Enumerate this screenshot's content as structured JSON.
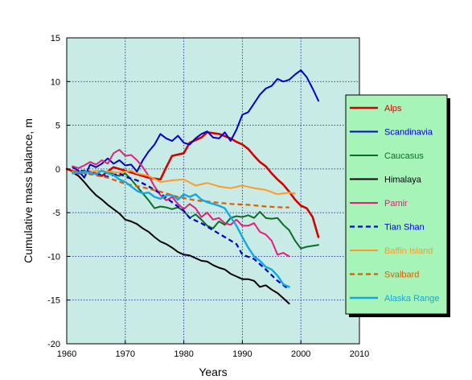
{
  "chart_data": {
    "type": "line",
    "title": "",
    "xlabel": "Years",
    "ylabel": "Cumulative mass balance, m",
    "xlim": [
      1960,
      2010
    ],
    "ylim": [
      -20,
      15
    ],
    "x_ticks": [
      1960,
      1970,
      1980,
      1990,
      2000,
      2010
    ],
    "y_ticks": [
      -20,
      -15,
      -10,
      -5,
      0,
      5,
      10,
      15
    ],
    "grid": true,
    "legend_position": "right",
    "plot_background": "#c8ebe6",
    "legend_background": "#a6f4b8",
    "series": [
      {
        "name": "Alps",
        "color": "#d40000",
        "dash": "solid",
        "width": 2.6,
        "points": [
          [
            1960,
            0
          ],
          [
            1962,
            -0.5
          ],
          [
            1964,
            -0.3
          ],
          [
            1966,
            -0.8
          ],
          [
            1968,
            0.2
          ],
          [
            1970,
            -0.2
          ],
          [
            1972,
            -0.6
          ],
          [
            1974,
            -1.0
          ],
          [
            1976,
            -1.2
          ],
          [
            1977,
            0.2
          ],
          [
            1978,
            1.5
          ],
          [
            1980,
            1.8
          ],
          [
            1981,
            3.0
          ],
          [
            1983,
            3.6
          ],
          [
            1984,
            4.2
          ],
          [
            1986,
            4.0
          ],
          [
            1988,
            3.5
          ],
          [
            1989,
            3.1
          ],
          [
            1990,
            2.8
          ],
          [
            1991,
            2.3
          ],
          [
            1992,
            1.5
          ],
          [
            1993,
            0.8
          ],
          [
            1994,
            0.3
          ],
          [
            1995,
            -0.5
          ],
          [
            1996,
            -1.2
          ],
          [
            1997,
            -1.8
          ],
          [
            1998,
            -2.6
          ],
          [
            1999,
            -3.5
          ],
          [
            2000,
            -4.2
          ],
          [
            2001,
            -4.5
          ],
          [
            2002,
            -5.5
          ],
          [
            2003,
            -7.8
          ]
        ]
      },
      {
        "name": "Scandinavia",
        "color": "#0000cc",
        "dash": "solid",
        "width": 2,
        "points": [
          [
            1961,
            0.2
          ],
          [
            1962,
            -0.2
          ],
          [
            1963,
            -1.0
          ],
          [
            1964,
            0.5
          ],
          [
            1965,
            0.2
          ],
          [
            1966,
            0.6
          ],
          [
            1967,
            1.2
          ],
          [
            1968,
            0.6
          ],
          [
            1969,
            1.0
          ],
          [
            1970,
            0.4
          ],
          [
            1971,
            0.5
          ],
          [
            1972,
            -0.3
          ],
          [
            1973,
            1.0
          ],
          [
            1974,
            2.0
          ],
          [
            1975,
            2.8
          ],
          [
            1976,
            4.0
          ],
          [
            1977,
            3.5
          ],
          [
            1978,
            3.2
          ],
          [
            1979,
            3.8
          ],
          [
            1980,
            3.0
          ],
          [
            1981,
            2.8
          ],
          [
            1982,
            3.5
          ],
          [
            1983,
            4.0
          ],
          [
            1984,
            4.3
          ],
          [
            1985,
            3.6
          ],
          [
            1986,
            3.5
          ],
          [
            1987,
            4.2
          ],
          [
            1988,
            3.2
          ],
          [
            1989,
            4.5
          ],
          [
            1990,
            6.2
          ],
          [
            1991,
            6.5
          ],
          [
            1992,
            7.5
          ],
          [
            1993,
            8.5
          ],
          [
            1994,
            9.2
          ],
          [
            1995,
            9.5
          ],
          [
            1996,
            10.3
          ],
          [
            1997,
            10.0
          ],
          [
            1998,
            10.2
          ],
          [
            1999,
            10.8
          ],
          [
            2000,
            11.3
          ],
          [
            2001,
            10.5
          ],
          [
            2002,
            9.2
          ],
          [
            2003,
            7.8
          ]
        ]
      },
      {
        "name": "Caucasus",
        "color": "#0a6e28",
        "dash": "solid",
        "width": 2,
        "points": [
          [
            1967,
            -0.3
          ],
          [
            1968,
            -0.6
          ],
          [
            1969,
            -0.8
          ],
          [
            1970,
            -0.5
          ],
          [
            1971,
            -1.2
          ],
          [
            1972,
            -2.0
          ],
          [
            1973,
            -2.8
          ],
          [
            1974,
            -3.6
          ],
          [
            1975,
            -4.5
          ],
          [
            1976,
            -4.3
          ],
          [
            1977,
            -4.4
          ],
          [
            1978,
            -4.6
          ],
          [
            1979,
            -4.4
          ],
          [
            1980,
            -4.8
          ],
          [
            1981,
            -5.6
          ],
          [
            1982,
            -5.2
          ],
          [
            1983,
            -5.8
          ],
          [
            1984,
            -6.5
          ],
          [
            1985,
            -6.8
          ],
          [
            1986,
            -6.0
          ],
          [
            1987,
            -6.4
          ],
          [
            1988,
            -5.6
          ],
          [
            1989,
            -5.4
          ],
          [
            1990,
            -5.5
          ],
          [
            1991,
            -5.3
          ],
          [
            1992,
            -5.6
          ],
          [
            1993,
            -4.9
          ],
          [
            1994,
            -5.6
          ],
          [
            1995,
            -5.7
          ],
          [
            1996,
            -5.6
          ],
          [
            1997,
            -6.4
          ],
          [
            1998,
            -7.0
          ],
          [
            1999,
            -8.2
          ],
          [
            2000,
            -9.1
          ],
          [
            2001,
            -8.9
          ],
          [
            2002,
            -8.8
          ],
          [
            2003,
            -8.7
          ]
        ]
      },
      {
        "name": "Himalaya",
        "color": "#000000",
        "dash": "solid",
        "width": 2,
        "points": [
          [
            1961,
            -0.4
          ],
          [
            1962,
            -0.8
          ],
          [
            1963,
            -1.5
          ],
          [
            1964,
            -2.3
          ],
          [
            1965,
            -3.0
          ],
          [
            1966,
            -3.5
          ],
          [
            1967,
            -4.1
          ],
          [
            1968,
            -4.6
          ],
          [
            1969,
            -5.1
          ],
          [
            1970,
            -5.8
          ],
          [
            1971,
            -6.0
          ],
          [
            1972,
            -6.3
          ],
          [
            1973,
            -6.8
          ],
          [
            1974,
            -7.2
          ],
          [
            1975,
            -7.8
          ],
          [
            1976,
            -8.3
          ],
          [
            1977,
            -8.6
          ],
          [
            1978,
            -9.0
          ],
          [
            1979,
            -9.5
          ],
          [
            1980,
            -9.8
          ],
          [
            1981,
            -9.9
          ],
          [
            1982,
            -10.2
          ],
          [
            1983,
            -10.5
          ],
          [
            1984,
            -10.6
          ],
          [
            1985,
            -11.0
          ],
          [
            1986,
            -11.3
          ],
          [
            1987,
            -11.5
          ],
          [
            1988,
            -12.0
          ],
          [
            1989,
            -12.3
          ],
          [
            1990,
            -12.6
          ],
          [
            1991,
            -12.6
          ],
          [
            1992,
            -12.8
          ],
          [
            1993,
            -13.5
          ],
          [
            1994,
            -13.3
          ],
          [
            1995,
            -13.8
          ],
          [
            1996,
            -14.2
          ],
          [
            1997,
            -14.8
          ],
          [
            1998,
            -15.4
          ]
        ]
      },
      {
        "name": "Pamir",
        "color": "#e0207a",
        "dash": "solid",
        "width": 2,
        "points": [
          [
            1961,
            0.3
          ],
          [
            1962,
            0.1
          ],
          [
            1963,
            0.4
          ],
          [
            1964,
            0.8
          ],
          [
            1965,
            0.5
          ],
          [
            1966,
            1.0
          ],
          [
            1967,
            0.6
          ],
          [
            1968,
            1.8
          ],
          [
            1969,
            2.2
          ],
          [
            1970,
            1.5
          ],
          [
            1971,
            1.6
          ],
          [
            1972,
            1.0
          ],
          [
            1973,
            0.2
          ],
          [
            1974,
            -0.8
          ],
          [
            1975,
            -2.0
          ],
          [
            1976,
            -3.0
          ],
          [
            1977,
            -3.6
          ],
          [
            1978,
            -3.2
          ],
          [
            1979,
            -4.0
          ],
          [
            1980,
            -4.6
          ],
          [
            1981,
            -4.0
          ],
          [
            1982,
            -4.5
          ],
          [
            1983,
            -5.5
          ],
          [
            1984,
            -5.0
          ],
          [
            1985,
            -5.8
          ],
          [
            1986,
            -5.6
          ],
          [
            1987,
            -6.2
          ],
          [
            1988,
            -6.4
          ],
          [
            1989,
            -5.8
          ],
          [
            1990,
            -6.5
          ],
          [
            1991,
            -6.5
          ],
          [
            1992,
            -6.2
          ],
          [
            1993,
            -7.2
          ],
          [
            1994,
            -7.5
          ],
          [
            1995,
            -8.2
          ],
          [
            1996,
            -9.8
          ],
          [
            1997,
            -9.6
          ],
          [
            1998,
            -10.0
          ]
        ]
      },
      {
        "name": "Tian Shan",
        "color": "#0000cc",
        "dash": "dashed",
        "width": 2.2,
        "points": [
          [
            1961,
            -0.3
          ],
          [
            1963,
            -0.2
          ],
          [
            1965,
            -0.5
          ],
          [
            1967,
            -0.9
          ],
          [
            1969,
            -0.5
          ],
          [
            1970,
            -0.9
          ],
          [
            1972,
            -1.3
          ],
          [
            1974,
            -2.0
          ],
          [
            1976,
            -2.8
          ],
          [
            1978,
            -3.8
          ],
          [
            1980,
            -4.8
          ],
          [
            1981,
            -5.6
          ],
          [
            1983,
            -6.2
          ],
          [
            1985,
            -7.0
          ],
          [
            1987,
            -7.8
          ],
          [
            1989,
            -8.6
          ],
          [
            1990,
            -9.8
          ],
          [
            1992,
            -10.3
          ],
          [
            1994,
            -11.5
          ],
          [
            1996,
            -12.8
          ],
          [
            1998,
            -13.8
          ]
        ]
      },
      {
        "name": "Baffin Island",
        "color": "#ff9a28",
        "dash": "solid",
        "width": 2,
        "points": [
          [
            1961,
            -0.3
          ],
          [
            1963,
            -0.5
          ],
          [
            1965,
            -0.2
          ],
          [
            1967,
            -0.3
          ],
          [
            1969,
            -0.4
          ],
          [
            1971,
            -0.2
          ],
          [
            1972,
            -0.5
          ],
          [
            1974,
            -0.8
          ],
          [
            1976,
            -1.5
          ],
          [
            1978,
            -1.3
          ],
          [
            1980,
            -1.2
          ],
          [
            1982,
            -1.9
          ],
          [
            1984,
            -1.6
          ],
          [
            1986,
            -2.0
          ],
          [
            1988,
            -2.2
          ],
          [
            1990,
            -1.9
          ],
          [
            1992,
            -2.2
          ],
          [
            1994,
            -2.4
          ],
          [
            1996,
            -2.9
          ],
          [
            1998,
            -2.7
          ],
          [
            1999,
            -2.8
          ]
        ]
      },
      {
        "name": "Svalbard",
        "color": "#e05a00",
        "dash": "dashed",
        "width": 2.2,
        "points": [
          [
            1961,
            -0.2
          ],
          [
            1964,
            -0.6
          ],
          [
            1967,
            -1.0
          ],
          [
            1970,
            -1.7
          ],
          [
            1973,
            -2.1
          ],
          [
            1976,
            -2.6
          ],
          [
            1979,
            -3.2
          ],
          [
            1982,
            -3.6
          ],
          [
            1985,
            -3.8
          ],
          [
            1988,
            -4.0
          ],
          [
            1991,
            -4.1
          ],
          [
            1994,
            -4.3
          ],
          [
            1997,
            -4.4
          ],
          [
            1998,
            -4.4
          ]
        ]
      },
      {
        "name": "Alaska Range",
        "color": "#12a8e2",
        "dash": "solid",
        "width": 2.4,
        "points": [
          [
            1961,
            -0.5
          ],
          [
            1963,
            -0.3
          ],
          [
            1965,
            -0.6
          ],
          [
            1966,
            -0.2
          ],
          [
            1967,
            -0.5
          ],
          [
            1968,
            -0.7
          ],
          [
            1969,
            -1.2
          ],
          [
            1970,
            -1.5
          ],
          [
            1971,
            -2.0
          ],
          [
            1972,
            -2.5
          ],
          [
            1973,
            -2.8
          ],
          [
            1974,
            -2.7
          ],
          [
            1975,
            -3.2
          ],
          [
            1976,
            -3.4
          ],
          [
            1977,
            -3.0
          ],
          [
            1978,
            -3.0
          ],
          [
            1979,
            -3.5
          ],
          [
            1980,
            -2.9
          ],
          [
            1981,
            -3.2
          ],
          [
            1982,
            -2.9
          ],
          [
            1983,
            -3.5
          ],
          [
            1984,
            -3.8
          ],
          [
            1985,
            -4.0
          ],
          [
            1986,
            -4.2
          ],
          [
            1987,
            -4.5
          ],
          [
            1988,
            -5.5
          ],
          [
            1989,
            -6.5
          ],
          [
            1990,
            -7.8
          ],
          [
            1991,
            -9.0
          ],
          [
            1992,
            -10.0
          ],
          [
            1993,
            -10.5
          ],
          [
            1994,
            -11.2
          ],
          [
            1995,
            -11.5
          ],
          [
            1996,
            -12.2
          ],
          [
            1997,
            -13.2
          ],
          [
            1998,
            -13.5
          ]
        ]
      }
    ]
  }
}
